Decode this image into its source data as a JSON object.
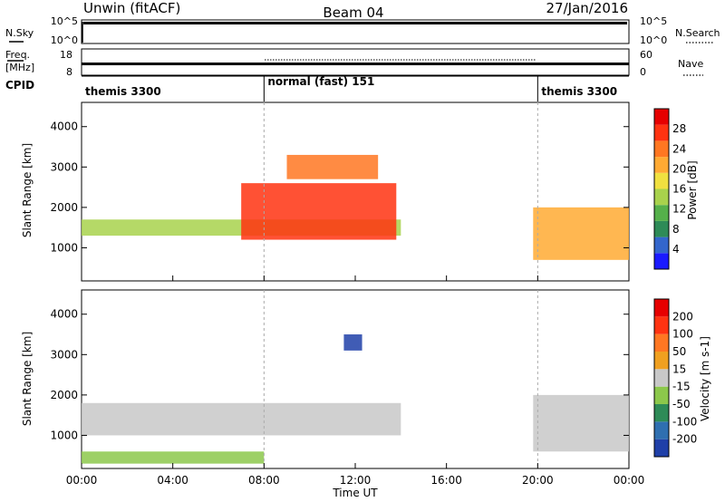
{
  "header": {
    "title_left": "Unwin (fitACF)",
    "title_center": "Beam 04",
    "title_right": "27/Jan/2016"
  },
  "panel_labels": {
    "nsky_label": "N.Sky",
    "freq_label_1": "Freq.",
    "freq_label_2": "[MHz]",
    "cpid_label": "CPID",
    "nsearch_label": "N.Search",
    "nave_label": "Nave"
  },
  "noise_axis": {
    "ticks": [
      "10^5",
      "10^0"
    ],
    "right_ticks": [
      "10^5",
      "10^0"
    ]
  },
  "freq_axis": {
    "ticks": [
      "18",
      "8"
    ],
    "right_ticks": [
      "60",
      "0"
    ]
  },
  "cpid_segments": [
    {
      "label": "themis 3300",
      "start_hour": 0,
      "end_hour": 8
    },
    {
      "label": "normal (fast) 151",
      "start_hour": 8,
      "end_hour": 20
    },
    {
      "label": "themis 3300",
      "start_hour": 20,
      "end_hour": 24
    }
  ],
  "time_axis": {
    "title": "Time UT",
    "ticks": [
      "00:00",
      "04:00",
      "08:00",
      "12:00",
      "16:00",
      "20:00",
      "00:00"
    ],
    "range_hours": [
      0,
      24
    ]
  },
  "chart_data": [
    {
      "type": "heatmap",
      "name": "Power",
      "x": "Time UT (hours)",
      "xlim": [
        0,
        24
      ],
      "ylabel": "Slant Range [km]",
      "ylim": [
        180,
        4600
      ],
      "y_ticks": [
        1000,
        2000,
        3000,
        4000
      ],
      "colorbar": {
        "label": "Power [dB]",
        "range": [
          0,
          32
        ],
        "ticks": [
          "4",
          "8",
          "12",
          "16",
          "20",
          "24",
          "28"
        ],
        "colors": [
          "#1a1aff",
          "#3366cc",
          "#2e8b57",
          "#55b04a",
          "#a8d24c",
          "#f0e040",
          "#ffaa33",
          "#ff7722",
          "#ff3311",
          "#e60000"
        ]
      },
      "features": [
        {
          "desc": "main echo band",
          "t_start": 0,
          "t_end": 14,
          "range_start_km": 1300,
          "range_end_km": 1700,
          "level": 14
        },
        {
          "desc": "rising high-power arc",
          "t_start": 7,
          "t_end": 13.8,
          "range_start_km": 1200,
          "range_end_km": 2600,
          "level": 26
        },
        {
          "desc": "upper arc",
          "t_start": 9,
          "t_end": 13,
          "range_start_km": 2700,
          "range_end_km": 3300,
          "level": 24
        },
        {
          "desc": "dusk echoes",
          "t_start": 19.8,
          "t_end": 24,
          "range_start_km": 700,
          "range_end_km": 2000,
          "level": 20
        }
      ]
    },
    {
      "type": "heatmap",
      "name": "Velocity",
      "x": "Time UT (hours)",
      "xlim": [
        0,
        24
      ],
      "ylabel": "Slant Range [km]",
      "ylim": [
        180,
        4600
      ],
      "y_ticks": [
        1000,
        2000,
        3000,
        4000
      ],
      "colorbar": {
        "label": "Velocity [m s-1]",
        "range": [
          -250,
          250
        ],
        "ticks": [
          "200",
          "100",
          "50",
          "15",
          "-15",
          "-50",
          "-100",
          "-200"
        ],
        "colors": [
          "#1f3fa8",
          "#2f6fb0",
          "#2e8b57",
          "#8cc84b",
          "#c8c8c8",
          "#f0a020",
          "#ff7722",
          "#ff3311",
          "#e60000"
        ]
      },
      "features": [
        {
          "desc": "low-velocity band (grey)",
          "t_start": 0,
          "t_end": 14,
          "range_start_km": 1000,
          "range_end_km": 1800,
          "level": 0
        },
        {
          "desc": "near-range negative flow",
          "t_start": 0,
          "t_end": 8,
          "range_start_km": 300,
          "range_end_km": 600,
          "level": -60
        },
        {
          "desc": "high negative velocity patch",
          "t_start": 11.5,
          "t_end": 12.3,
          "range_start_km": 3100,
          "range_end_km": 3500,
          "level": -200
        },
        {
          "desc": "dusk low-velocity echoes",
          "t_start": 19.8,
          "t_end": 24,
          "range_start_km": 600,
          "range_end_km": 2000,
          "level": 0
        }
      ]
    }
  ]
}
